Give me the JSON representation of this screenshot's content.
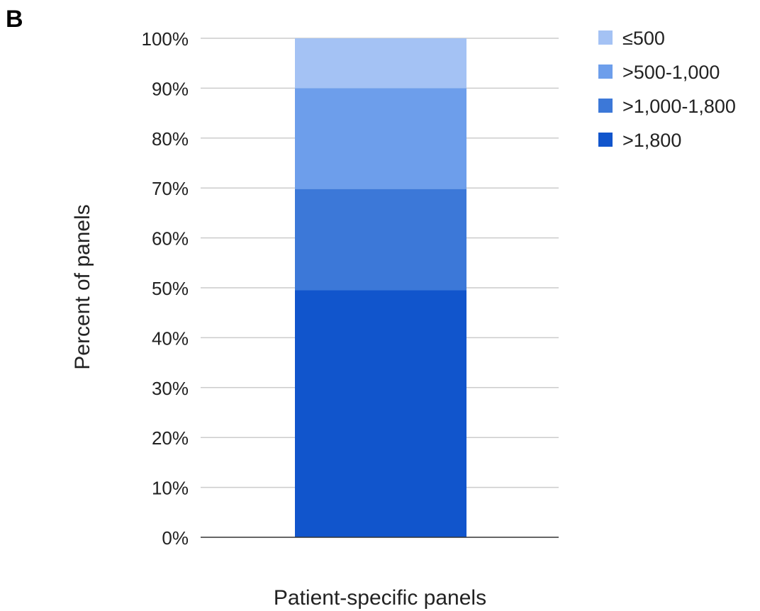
{
  "panel_label": "B",
  "chart_data": {
    "type": "bar",
    "stacked": true,
    "categories": [
      "Patient-specific panels"
    ],
    "series": [
      {
        "name": ">1,800",
        "values": [
          49.5
        ],
        "color": "#1155cc"
      },
      {
        "name": ">1,000-1,800",
        "values": [
          20.3
        ],
        "color": "#3c78d8"
      },
      {
        "name": ">500-1,000",
        "values": [
          20.2
        ],
        "color": "#6d9eeb"
      },
      {
        "name": "≤500",
        "values": [
          10.0
        ],
        "color": "#a4c2f4"
      }
    ],
    "legend_order": [
      "≤500",
      ">500-1,000",
      ">1,000-1,800",
      ">1,800"
    ],
    "legend_position": "top-right",
    "xlabel": "Patient-specific panels",
    "ylabel": "Percent of panels",
    "ylim": [
      0,
      100
    ],
    "yticks": [
      "0%",
      "10%",
      "20%",
      "30%",
      "40%",
      "50%",
      "60%",
      "70%",
      "80%",
      "90%",
      "100%"
    ],
    "grid": true,
    "gridline_color": "#cccccc"
  }
}
